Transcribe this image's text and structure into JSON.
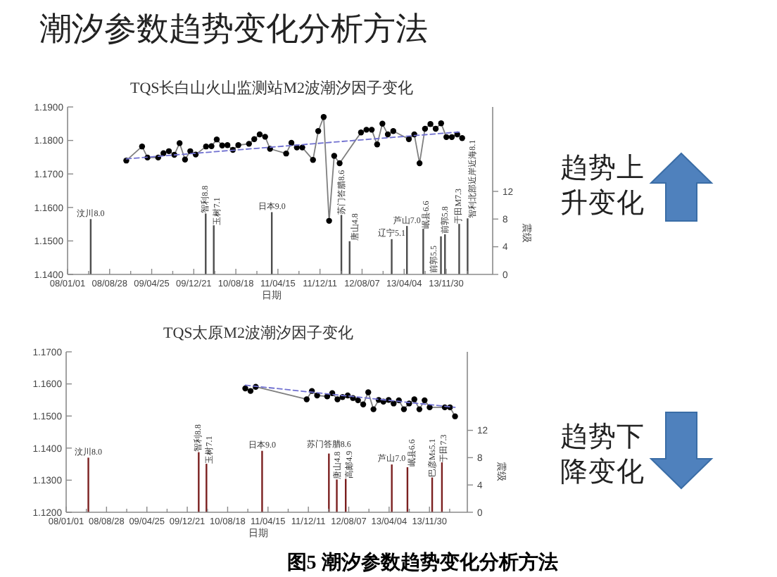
{
  "chart_data": [
    {
      "type": "other",
      "title": "潮汐参数趋势变化分析方法",
      "annotations": [
        "图5 潮汐参数趋势变化分析方法"
      ]
    },
    {
      "type": "line",
      "title": "TQS长白山火山监测站M2波潮汐因子变化",
      "xlabel": "日期",
      "y2label": "震级",
      "annotations": [
        "趋势上升变化"
      ],
      "xlim": [
        "2008-01-01",
        "2014-08-22"
      ],
      "xticks": [
        {
          "value": "2008-01-01",
          "label": "08/01/01"
        },
        {
          "value": "2008-04-30",
          "label": null
        },
        {
          "value": "2008-08-28",
          "label": "08/08/28"
        },
        {
          "value": "2008-12-26",
          "label": null
        },
        {
          "value": "2009-04-25",
          "label": "09/04/25"
        },
        {
          "value": "2009-08-23",
          "label": null
        },
        {
          "value": "2009-12-21",
          "label": "09/12/21"
        },
        {
          "value": "2010-04-20",
          "label": null
        },
        {
          "value": "2010-08-18",
          "label": "10/08/18"
        },
        {
          "value": "2010-12-16",
          "label": null
        },
        {
          "value": "2011-04-15",
          "label": "11/04/15"
        },
        {
          "value": "2011-08-13",
          "label": null
        },
        {
          "value": "2011-12-11",
          "label": "11/12/11"
        },
        {
          "value": "2012-04-09",
          "label": null
        },
        {
          "value": "2012-08-07",
          "label": "12/08/07"
        },
        {
          "value": "2012-12-05",
          "label": null
        },
        {
          "value": "2013-04-04",
          "label": "13/04/04"
        },
        {
          "value": "2013-08-02",
          "label": null
        },
        {
          "value": "2013-11-30",
          "label": "13/11/30"
        },
        {
          "value": "2014-03-30",
          "label": null
        }
      ],
      "ylim": [
        1.14,
        1.19
      ],
      "yticks": [
        {
          "value": 1.14,
          "label": "1.1400"
        },
        {
          "value": 1.15,
          "label": "1.1500"
        },
        {
          "value": 1.16,
          "label": "1.1600"
        },
        {
          "value": 1.17,
          "label": "1.1700"
        },
        {
          "value": 1.18,
          "label": "1.1800"
        },
        {
          "value": 1.19,
          "label": "1.1900"
        }
      ],
      "y2lim": [
        0,
        24.2
      ],
      "y2ticks": [
        0,
        4,
        8,
        12
      ],
      "series": [
        {
          "type": "line",
          "color": "#000000",
          "marker": "circle",
          "line_style": "solid",
          "x": [
            "2008-12",
            "2009-03",
            "2009-04",
            "2009-06",
            "2009-07",
            "2009-08",
            "2009-09",
            "2009-10",
            "2009-11",
            "2009-12",
            "2010-01",
            "2010-03",
            "2010-04",
            "2010-05",
            "2010-06",
            "2010-07",
            "2010-08",
            "2010-09",
            "2010-11",
            "2010-12",
            "2011-01",
            "2011-02",
            "2011-03",
            "2011-06",
            "2011-07",
            "2011-08",
            "2011-09",
            "2011-11",
            "2011-12",
            "2012-01",
            "2012-02",
            "2012-03",
            "2012-04",
            "2012-08",
            "2012-09",
            "2012-10",
            "2012-11",
            "2012-12",
            "2013-01",
            "2013-02",
            "2013-05",
            "2013-06",
            "2013-07",
            "2013-08",
            "2013-09",
            "2013-10",
            "2013-11",
            "2013-12",
            "2014-01",
            "2014-02",
            "2014-03"
          ],
          "values": [
            1.174,
            1.1782,
            1.1749,
            1.1749,
            1.1762,
            1.1768,
            1.1757,
            1.1792,
            1.1743,
            1.1768,
            1.1758,
            1.1782,
            1.1783,
            1.1803,
            1.1785,
            1.1786,
            1.1772,
            1.1786,
            1.179,
            1.1804,
            1.1818,
            1.1811,
            1.1775,
            1.1761,
            1.1793,
            1.1779,
            1.1779,
            1.1742,
            1.1828,
            1.187,
            1.156,
            1.1754,
            1.1732,
            1.1824,
            1.1832,
            1.1832,
            1.1788,
            1.185,
            1.1818,
            1.1828,
            1.1804,
            1.1818,
            1.1732,
            1.1835,
            1.1849,
            1.1835,
            1.1851,
            1.181,
            1.181,
            1.1818,
            1.1807
          ]
        },
        {
          "type": "line",
          "color": "#7070d0",
          "marker": "none",
          "line_style": "dashed",
          "x": [
            "2008-12",
            "2014-03"
          ],
          "values": [
            1.1745,
            1.1826
          ]
        },
        {
          "type": "bar",
          "axis": "y2",
          "color": "#4d4d4d",
          "x": [
            "2008-05-12",
            "2010-02-27",
            "2010-04-14",
            "2011-03-11",
            "2012-04-11",
            "2012-05-28",
            "2013-01-23",
            "2013-04-20",
            "2013-07-22",
            "2013-10-31",
            "2013-11-23",
            "2014-02-12",
            "2014-04-01"
          ],
          "values": [
            8.0,
            8.8,
            7.1,
            9.0,
            8.6,
            4.8,
            5.1,
            7.0,
            6.6,
            5.5,
            5.8,
            7.3,
            8.1
          ],
          "value_labels": [
            "汶川8.0",
            "智利8.8",
            "玉树7.1",
            "日本9.0",
            "苏门答腊8.6",
            "唐山4.8",
            "辽宁5.1",
            "芦山7.0",
            "岷县6.6",
            "前郭5.5",
            "前郭5.8",
            "于田M7.3",
            "智利北部近岸近海8.1"
          ]
        }
      ]
    },
    {
      "type": "line",
      "title": "TQS太原M2波潮汐因子变化",
      "xlabel": "日期",
      "y2label": "震级",
      "annotations": [
        "趋势下降变化"
      ],
      "xlim": [
        "2008-01-01",
        "2014-07-13"
      ],
      "xticks": [
        {
          "value": "2008-01-01",
          "label": "08/01/01"
        },
        {
          "value": "2008-04-30",
          "label": null
        },
        {
          "value": "2008-08-28",
          "label": "08/08/28"
        },
        {
          "value": "2008-12-26",
          "label": null
        },
        {
          "value": "2009-04-25",
          "label": "09/04/25"
        },
        {
          "value": "2009-08-23",
          "label": null
        },
        {
          "value": "2009-12-21",
          "label": "09/12/21"
        },
        {
          "value": "2010-04-20",
          "label": null
        },
        {
          "value": "2010-08-18",
          "label": "10/08/18"
        },
        {
          "value": "2010-12-16",
          "label": null
        },
        {
          "value": "2011-04-15",
          "label": "11/04/15"
        },
        {
          "value": "2011-08-13",
          "label": null
        },
        {
          "value": "2011-12-11",
          "label": "11/12/11"
        },
        {
          "value": "2012-04-09",
          "label": null
        },
        {
          "value": "2012-08-07",
          "label": "12/08/07"
        },
        {
          "value": "2012-12-05",
          "label": null
        },
        {
          "value": "2013-04-04",
          "label": "13/04/04"
        },
        {
          "value": "2013-08-02",
          "label": null
        },
        {
          "value": "2013-11-30",
          "label": "13/11/30"
        },
        {
          "value": "2014-03-30",
          "label": null
        }
      ],
      "ylim": [
        1.12,
        1.17
      ],
      "yticks": [
        {
          "value": 1.12,
          "label": "1.1200"
        },
        {
          "value": 1.13,
          "label": "1.1300"
        },
        {
          "value": 1.14,
          "label": "1.1400"
        },
        {
          "value": 1.15,
          "label": "1.1500"
        },
        {
          "value": 1.16,
          "label": "1.1600"
        },
        {
          "value": 1.17,
          "label": "1.1700"
        }
      ],
      "y2lim": [
        0,
        23.5
      ],
      "y2ticks": [
        0,
        4,
        8,
        12
      ],
      "series": [
        {
          "type": "line",
          "color": "#000000",
          "marker": "circle",
          "line_style": "solid",
          "x": [
            "2010-12",
            "2011-01",
            "2011-02",
            "2011-12",
            "2012-01",
            "2012-02",
            "2012-04",
            "2012-05",
            "2012-06",
            "2012-07",
            "2012-08",
            "2012-09",
            "2012-10",
            "2012-11",
            "2012-12",
            "2013-01",
            "2013-02",
            "2013-03",
            "2013-04",
            "2013-05",
            "2013-06",
            "2013-07",
            "2013-08",
            "2013-09",
            "2013-10",
            "2013-11",
            "2013-12",
            "2014-03",
            "2014-04",
            "2014-05"
          ],
          "values": [
            1.1586,
            1.1578,
            1.1591,
            1.1552,
            1.1578,
            1.1564,
            1.1561,
            1.1571,
            1.1552,
            1.1559,
            1.1564,
            1.1556,
            1.1549,
            1.1536,
            1.1574,
            1.1521,
            1.155,
            1.1545,
            1.155,
            1.1539,
            1.1549,
            1.1521,
            1.1539,
            1.1552,
            1.1521,
            1.1549,
            1.1527,
            1.1527,
            1.1527,
            1.1499
          ]
        },
        {
          "type": "line",
          "color": "#7070d0",
          "marker": "none",
          "line_style": "dashed",
          "x": [
            "2010-12",
            "2014-05"
          ],
          "values": [
            1.1596,
            1.1527
          ]
        },
        {
          "type": "bar",
          "axis": "y2",
          "color": "#7b2020",
          "x": [
            "2008-05-12",
            "2010-02-27",
            "2010-04-14",
            "2011-03-11",
            "2012-04-11",
            "2012-05-28",
            "2012-07-20",
            "2013-04-20",
            "2013-07-22",
            "2013-12-16",
            "2014-02-12"
          ],
          "values": [
            8.0,
            8.8,
            7.1,
            9.0,
            8.6,
            4.8,
            4.9,
            7.0,
            6.6,
            5.1,
            7.3
          ],
          "value_labels": [
            "汶川8.0",
            "智利8.8",
            "玉树7.1",
            "日本9.0",
            "苏门答腊8.6",
            "唐山4.8",
            "高邮4.9",
            "芦山7.0",
            "岷县6.6",
            "巴彦Ms5.1",
            "于田7.3"
          ]
        }
      ]
    }
  ]
}
